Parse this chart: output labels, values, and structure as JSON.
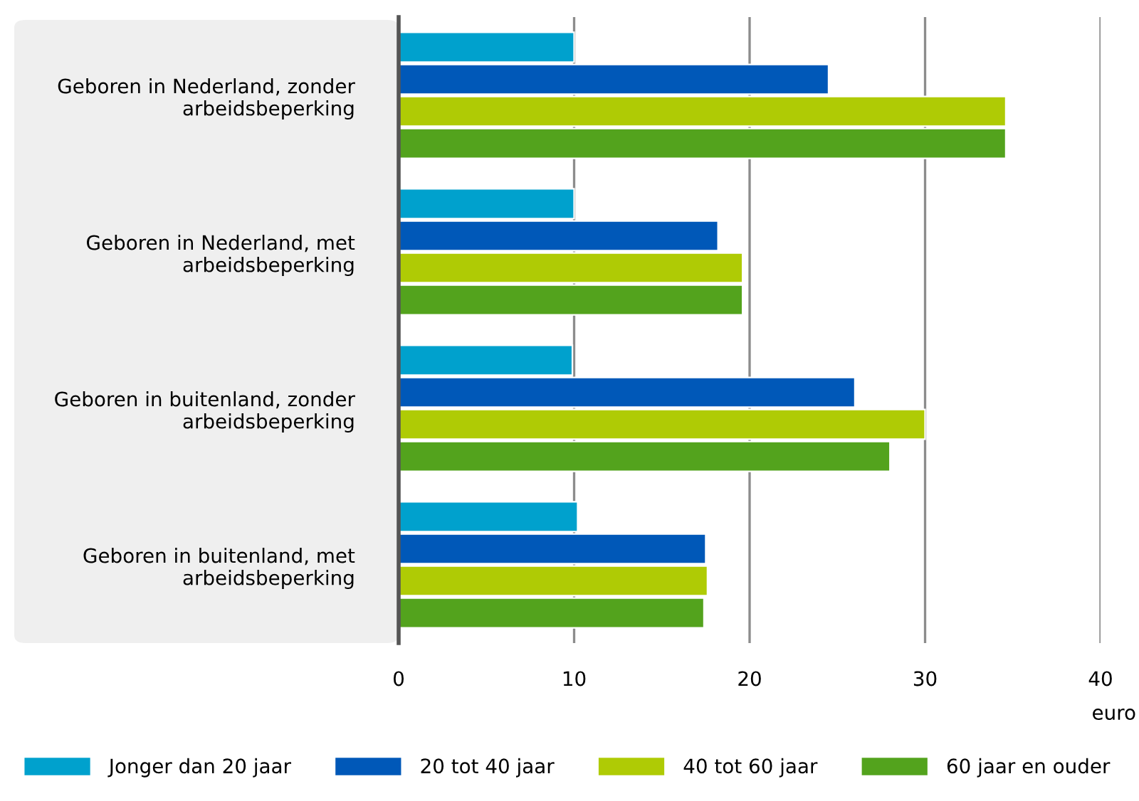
{
  "chart_data": {
    "type": "bar",
    "orientation": "horizontal",
    "xlabel": "euro",
    "categories": [
      "Geboren in Nederland, zonder\narbeidsbeperking",
      "Geboren in Nederland, met\narbeidsbeperking",
      "Geboren in buitenland, zonder\narbeidsbeperking",
      "Geboren in buitenland, met\narbeidsbeperking"
    ],
    "series": [
      {
        "name": "Jonger dan 20 jaar",
        "color": "#00a1cd",
        "values": [
          10.0,
          10.0,
          9.9,
          10.2
        ]
      },
      {
        "name": "20 tot 40 jaar",
        "color": "#0058b8",
        "values": [
          24.5,
          18.2,
          26.0,
          17.5
        ]
      },
      {
        "name": "40 tot 60 jaar",
        "color": "#afcb05",
        "values": [
          34.6,
          19.6,
          30.0,
          17.6
        ]
      },
      {
        "name": "60 jaar en ouder",
        "color": "#53a31d",
        "values": [
          34.6,
          19.6,
          28.0,
          17.4
        ]
      }
    ],
    "xlim": [
      0,
      40
    ],
    "xticks": [
      0,
      10,
      20,
      30,
      40
    ],
    "grid": "x",
    "legend": "bottom"
  }
}
